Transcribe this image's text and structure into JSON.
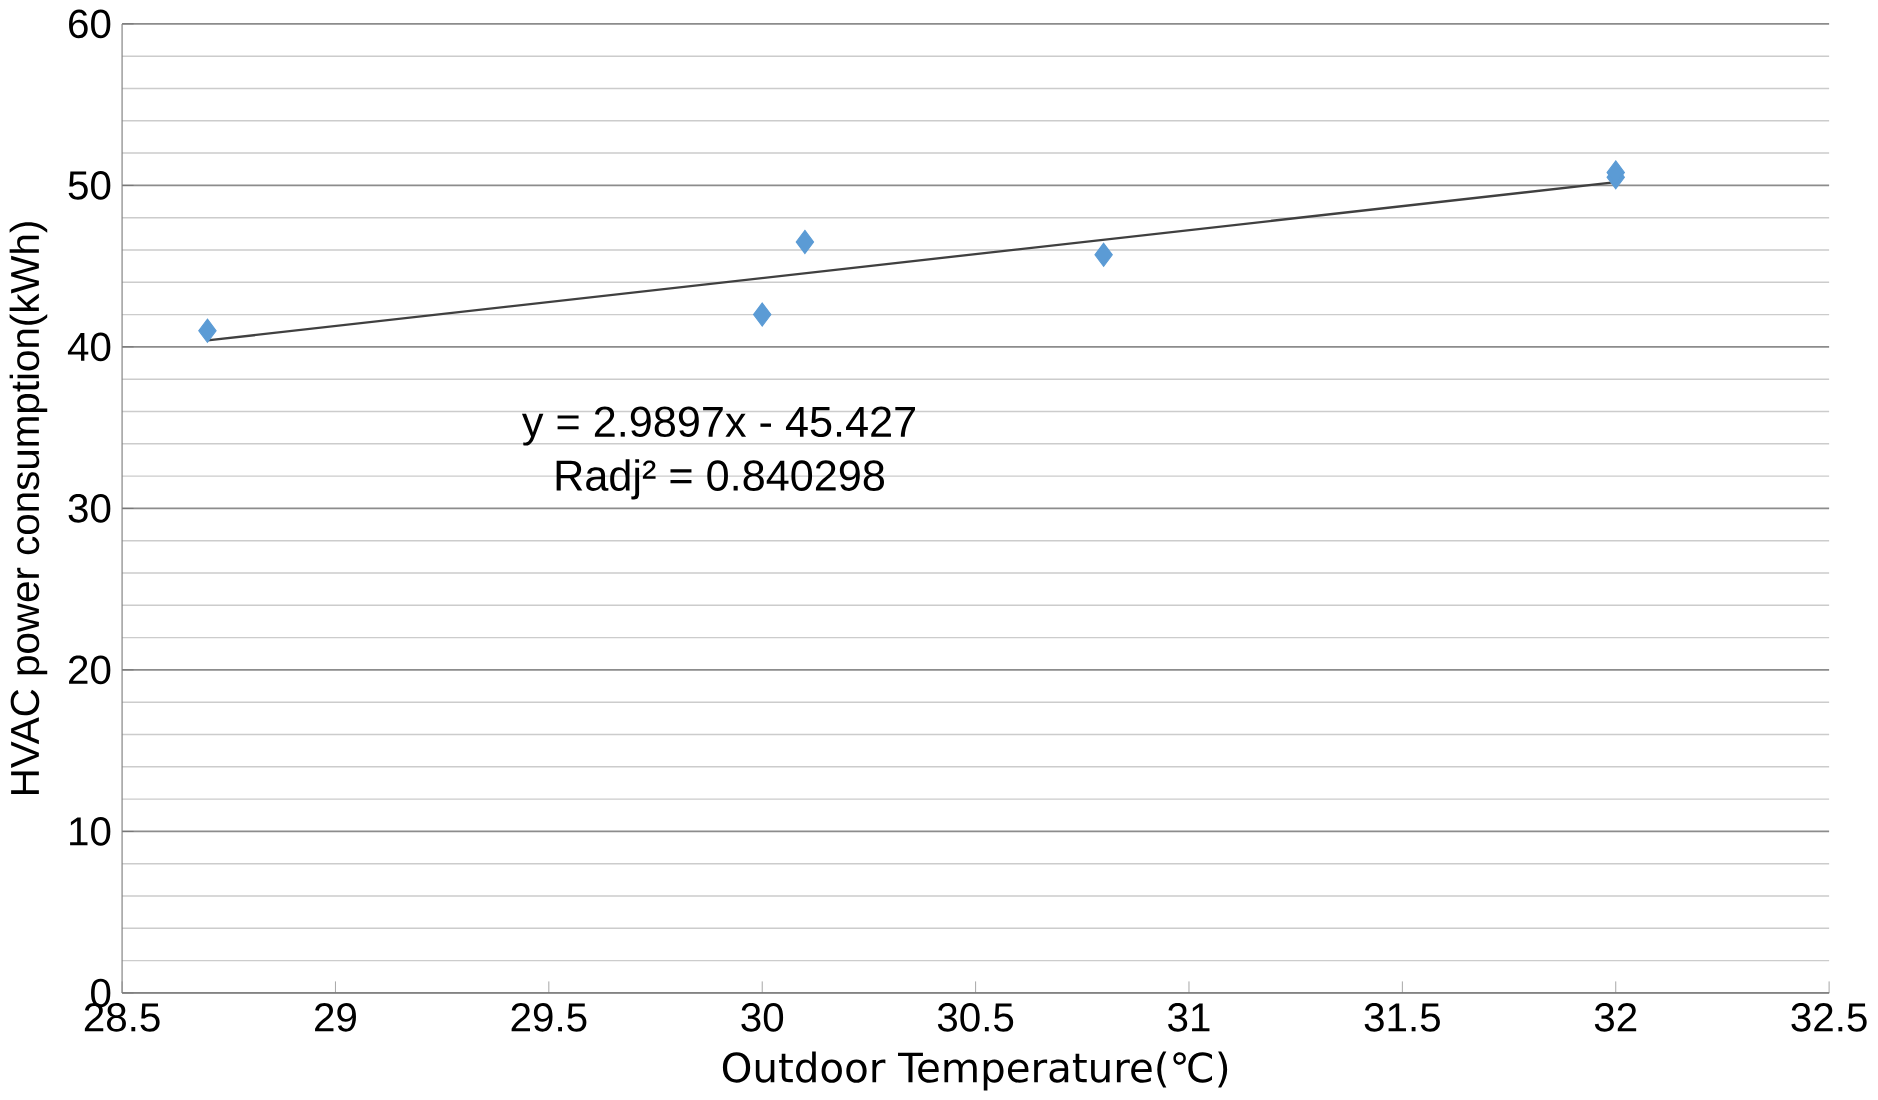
{
  "chart_data": {
    "type": "scatter",
    "xlabel": "Outdoor Temperature(℃)",
    "ylabel": "HVAC power consumption(kWh)",
    "xlim": [
      28.5,
      32.5
    ],
    "xticks": [
      28.5,
      29,
      29.5,
      30,
      30.5,
      31,
      31.5,
      32,
      32.5
    ],
    "ylim": [
      0,
      60
    ],
    "yticks": [
      0,
      10,
      20,
      30,
      40,
      50,
      60
    ],
    "grid": "y",
    "series": [
      {
        "marker": "diamond",
        "color": "#5b9bd5",
        "x": [
          28.7,
          30.0,
          30.1,
          30.8,
          32.0,
          32.0
        ],
        "values": [
          41.0,
          42.0,
          46.5,
          45.7,
          50.5,
          50.8
        ]
      },
      {
        "type": "line",
        "marker": "none",
        "color": "#404040",
        "x": [
          28.7,
          32.0
        ],
        "values": [
          40.4,
          50.2
        ]
      }
    ],
    "annotations": [
      "y = 2.9897x - 45.427",
      "Radj² = 0.840298"
    ]
  }
}
